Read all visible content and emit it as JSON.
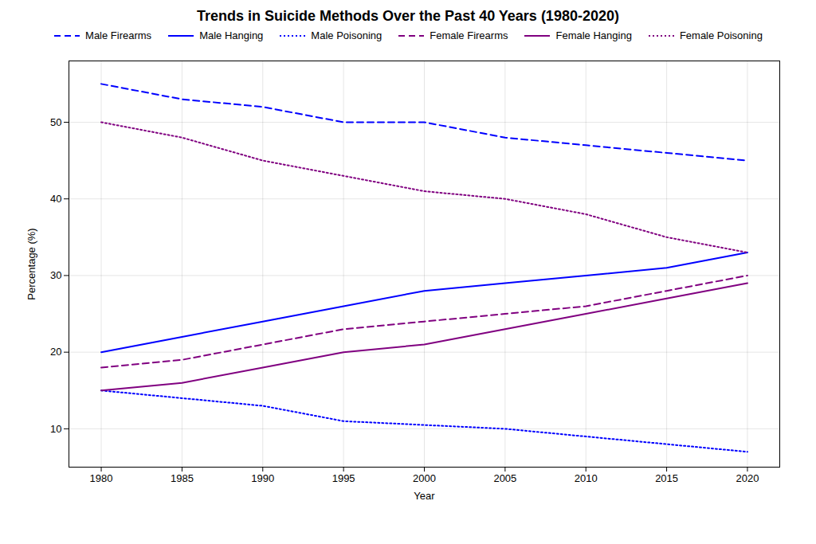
{
  "chart_data": {
    "type": "line",
    "title": "Trends in Suicide Methods Over the Past 40 Years (1980-2020)",
    "xlabel": "Year",
    "ylabel": "Percentage (%)",
    "x": [
      1980,
      1985,
      1990,
      1995,
      2000,
      2005,
      2010,
      2015,
      2020
    ],
    "series": [
      {
        "name": "Male Firearms",
        "color": "#0000FF",
        "line_style": "dashed",
        "values": [
          55,
          53,
          52,
          50,
          50,
          48,
          47,
          46,
          45
        ]
      },
      {
        "name": "Male Hanging",
        "color": "#0000FF",
        "line_style": "solid",
        "values": [
          20,
          22,
          24,
          26,
          28,
          29,
          30,
          31,
          33
        ]
      },
      {
        "name": "Male Poisoning",
        "color": "#0000FF",
        "line_style": "dotted",
        "values": [
          15,
          14,
          13,
          11,
          10.5,
          10,
          9,
          8,
          7
        ]
      },
      {
        "name": "Female Firearms",
        "color": "#800080",
        "line_style": "dashed",
        "values": [
          18,
          19,
          21,
          23,
          24,
          25,
          26,
          28,
          30
        ]
      },
      {
        "name": "Female Hanging",
        "color": "#800080",
        "line_style": "solid",
        "values": [
          15,
          16,
          18,
          20,
          21,
          23,
          25,
          27,
          29
        ]
      },
      {
        "name": "Female Poisoning",
        "color": "#800080",
        "line_style": "dotted",
        "values": [
          50,
          48,
          45,
          43,
          41,
          40,
          38,
          35,
          33
        ]
      }
    ],
    "xlim": [
      1978,
      2022
    ],
    "ylim": [
      5,
      58
    ],
    "xticks": [
      1980,
      1985,
      1990,
      1995,
      2000,
      2005,
      2010,
      2015,
      2020
    ],
    "yticks": [
      10,
      20,
      30,
      40,
      50
    ],
    "grid": true,
    "legend": "top"
  }
}
